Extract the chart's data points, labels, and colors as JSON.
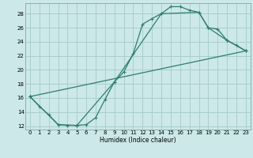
{
  "xlabel": "Humidex (Indice chaleur)",
  "xlim": [
    -0.5,
    23.5
  ],
  "ylim": [
    11.5,
    29.5
  ],
  "xticks": [
    0,
    1,
    2,
    3,
    4,
    5,
    6,
    7,
    8,
    9,
    10,
    11,
    12,
    13,
    14,
    15,
    16,
    17,
    18,
    19,
    20,
    21,
    22,
    23
  ],
  "yticks": [
    12,
    14,
    16,
    18,
    20,
    22,
    24,
    26,
    28
  ],
  "bg_color": "#cce8e8",
  "line_color": "#2e7d6e",
  "grid_color": "#aacece",
  "line1_x": [
    0,
    1,
    2,
    3,
    4,
    5,
    6,
    7,
    8,
    9,
    10,
    11,
    12,
    13,
    14,
    15,
    16,
    17,
    18,
    19,
    20,
    21,
    22,
    23
  ],
  "line1_y": [
    16.2,
    14.8,
    13.6,
    12.2,
    12.1,
    12.1,
    12.2,
    13.2,
    15.8,
    18.3,
    19.7,
    22.3,
    26.5,
    27.3,
    28.0,
    29.0,
    29.0,
    28.5,
    28.2,
    26.0,
    25.8,
    24.2,
    23.5,
    22.7
  ],
  "line2_x": [
    0,
    3,
    5,
    9,
    14,
    18,
    19,
    21,
    23
  ],
  "line2_y": [
    16.2,
    12.2,
    12.1,
    18.3,
    28.0,
    28.2,
    26.0,
    24.2,
    22.7
  ],
  "line3_x": [
    0,
    23
  ],
  "line3_y": [
    16.2,
    22.7
  ],
  "figw": 3.2,
  "figh": 2.0,
  "dpi": 100
}
